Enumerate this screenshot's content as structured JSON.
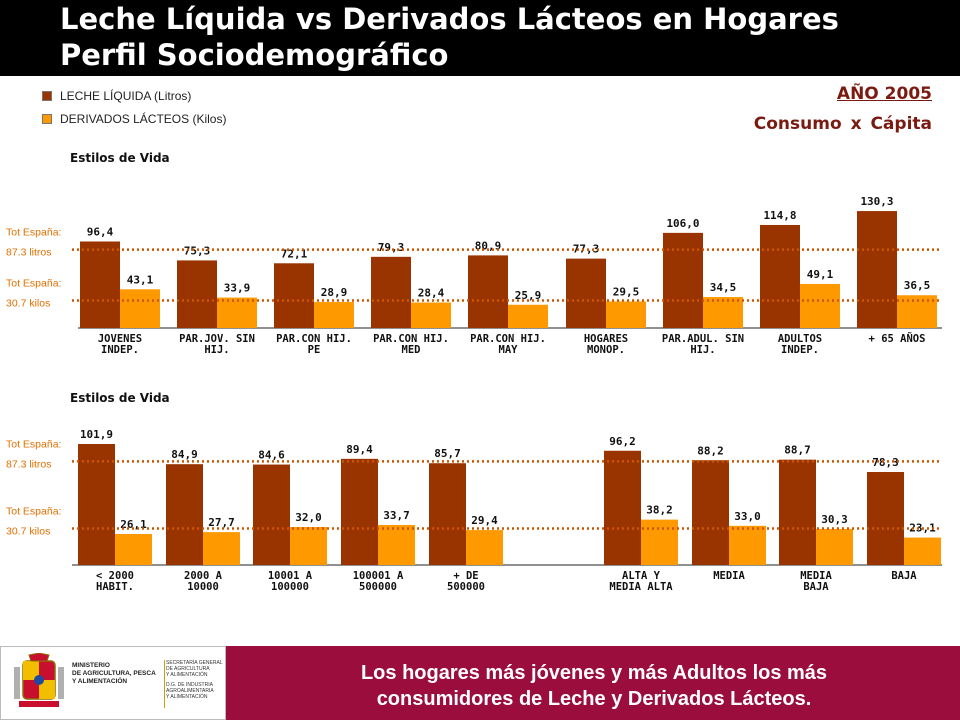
{
  "header": {
    "title_line1": "Leche Líquida vs Derivados Lácteos en Hogares",
    "title_line2": "Perfil Sociodemográfico"
  },
  "legend": [
    {
      "label": "LECHE LÍQUIDA (Litros)",
      "color": "#993300"
    },
    {
      "label": "DERIVADOS LÁCTEOS (Kilos)",
      "color": "#ff9900"
    }
  ],
  "year_label": "AÑO 2005",
  "per_capita_label": "Consumo x Cápita",
  "colors": {
    "leche": "#993300",
    "derivados": "#ff9900",
    "avg_line": "#cc5500",
    "avg_text": "#e07000"
  },
  "chart_data": [
    {
      "type": "bar",
      "title": "Estilos de Vida",
      "categories": [
        [
          "JOVENES",
          "INDEP."
        ],
        [
          "PAR.JOV. SIN",
          "HIJ."
        ],
        [
          "PAR.CON HIJ.",
          "PE"
        ],
        [
          "PAR.CON HIJ.",
          "MED"
        ],
        [
          "PAR.CON HIJ.",
          "MAY"
        ],
        [
          "HOGARES",
          "MONOP."
        ],
        [
          "PAR.ADUL. SIN",
          "HIJ."
        ],
        [
          "ADULTOS",
          "INDEP."
        ],
        [
          "+ 65 AÑOS"
        ]
      ],
      "series": [
        {
          "name": "LECHE LÍQUIDA (Litros)",
          "values": [
            96.4,
            75.3,
            72.1,
            79.3,
            80.9,
            77.3,
            106.0,
            114.8,
            130.3
          ],
          "labels": [
            "96,4",
            "75,3",
            "72,1",
            "79,3",
            "80,9",
            "77,3",
            "106,0",
            "114,8",
            "130,3"
          ]
        },
        {
          "name": "DERIVADOS LÁCTEOS (Kilos)",
          "values": [
            43.1,
            33.9,
            28.9,
            28.4,
            25.9,
            29.5,
            34.5,
            49.1,
            36.5
          ],
          "labels": [
            "43,1",
            "33,9",
            "28,9",
            "28,4",
            "25,9",
            "29,5",
            "34,5",
            "49,1",
            "36,5"
          ]
        }
      ],
      "reference_lines": [
        {
          "value": 87.3,
          "label1": "Tot España:",
          "label2": "87.3 litros"
        },
        {
          "value": 30.7,
          "label1": "Tot España:",
          "label2": "30.7 kilos"
        }
      ],
      "ylim": [
        0,
        140
      ]
    },
    {
      "type": "bar",
      "title": "Estilos de Vida",
      "categories": [
        [
          "< 2000",
          "HABIT."
        ],
        [
          "2000 A",
          "10000"
        ],
        [
          "10001 A",
          "100000"
        ],
        [
          "100001 A",
          "500000"
        ],
        [
          "+ DE",
          "500000"
        ],
        [
          "ALTA Y",
          "MEDIA ALTA"
        ],
        [
          "MEDIA"
        ],
        [
          "MEDIA",
          "BAJA"
        ],
        [
          "BAJA"
        ]
      ],
      "gap_after_index": 4,
      "series": [
        {
          "name": "LECHE LÍQUIDA (Litros)",
          "values": [
            101.9,
            84.9,
            84.6,
            89.4,
            85.7,
            96.2,
            88.2,
            88.7,
            78.3
          ],
          "labels": [
            "101,9",
            "84,9",
            "84,6",
            "89,4",
            "85,7",
            "96,2",
            "88,2",
            "88,7",
            "78,3"
          ]
        },
        {
          "name": "DERIVADOS LÁCTEOS (Kilos)",
          "values": [
            26.1,
            27.7,
            32.0,
            33.7,
            29.4,
            38.2,
            33.0,
            30.3,
            23.1
          ],
          "labels": [
            "26,1",
            "27,7",
            "32,0",
            "33,7",
            "29,4",
            "38,2",
            "33,0",
            "30,3",
            "23,1"
          ]
        }
      ],
      "reference_lines": [
        {
          "value": 87.3,
          "label1": "Tot España:",
          "label2": "87.3 litros"
        },
        {
          "value": 30.7,
          "label1": "Tot España:",
          "label2": "30.7 kilos"
        }
      ],
      "ylim": [
        0,
        112
      ]
    }
  ],
  "footer": {
    "text_line1": "Los hogares más jóvenes y más Adultos los más",
    "text_line2": "consumidores de Leche y Derivados Lácteos.",
    "ministry": [
      "MINISTERIO",
      "DE AGRICULTURA, PESCA",
      "Y ALIMENTACIÓN"
    ],
    "secretaria": [
      "SECRETARÍA GENERAL",
      "DE AGRICULTURA",
      "Y ALIMENTACIÓN",
      "D.G. DE INDUSTRIA",
      "AGROALIMENTARIA",
      "Y ALIMENTACIÓN"
    ]
  }
}
